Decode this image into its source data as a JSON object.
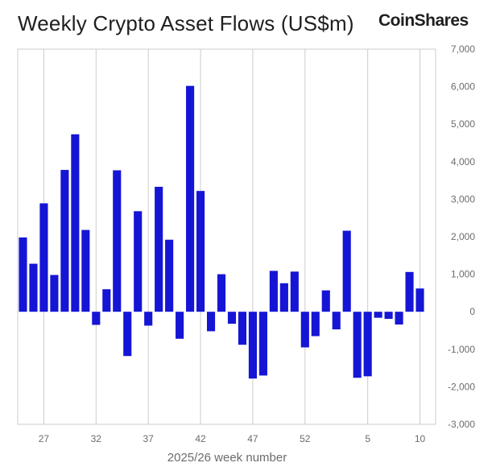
{
  "title": "Weekly Crypto Asset Flows (US$m)",
  "logo": "CoinShares",
  "colors": {
    "bar": "#1515d6",
    "grid": "#cccccc",
    "axis_text": "#6b6b6b"
  },
  "chart_data": {
    "type": "bar",
    "title": "Weekly Crypto Asset Flows (US$m)",
    "xlabel": "2025/26 week number",
    "ylabel": "",
    "ylim": [
      -3000,
      7000
    ],
    "yticks": [
      7000,
      6000,
      5000,
      4000,
      3000,
      2000,
      1000,
      0,
      -1000,
      -2000,
      -3000
    ],
    "ytick_labels": [
      "7,000",
      "6,000",
      "5,000",
      "4,000",
      "3,000",
      "2,000",
      "1,000",
      "0",
      "-1,000",
      "-2,000",
      "-3,000"
    ],
    "y_axis_position": "right",
    "grid": "vertical",
    "categories": [
      "25",
      "26",
      "27",
      "28",
      "29",
      "30",
      "31",
      "32",
      "33",
      "34",
      "35",
      "36",
      "37",
      "38",
      "39",
      "40",
      "41",
      "42",
      "43",
      "44",
      "45",
      "46",
      "47",
      "48",
      "49",
      "50",
      "51",
      "52",
      "53",
      "1",
      "2",
      "3",
      "4",
      "5",
      "6",
      "7",
      "8",
      "9",
      "10",
      "11"
    ],
    "xtick_labels": [
      "27",
      "32",
      "37",
      "42",
      "47",
      "52",
      "5",
      "10"
    ],
    "values": [
      1980,
      1280,
      2890,
      980,
      3780,
      4730,
      2180,
      -350,
      600,
      3770,
      -1180,
      2680,
      -370,
      3330,
      1920,
      -720,
      6020,
      3220,
      -520,
      1000,
      -320,
      -880,
      -1780,
      -1700,
      1090,
      760,
      1070,
      -950,
      -650,
      570,
      -470,
      2160,
      -1760,
      -1720,
      -160,
      -190,
      -340,
      1060,
      620,
      0
    ]
  }
}
